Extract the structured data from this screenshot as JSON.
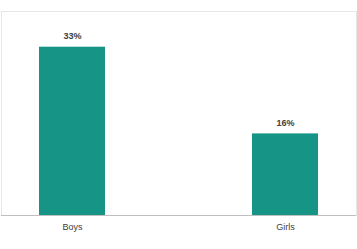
{
  "chart_data": {
    "type": "bar",
    "categories": [
      "Boys",
      "Girls"
    ],
    "values": [
      33,
      16
    ],
    "value_labels": [
      "33%",
      "16%"
    ],
    "color": "#169486",
    "ylim": [
      0,
      40
    ],
    "data_labels": true,
    "tick_labels": "x"
  }
}
